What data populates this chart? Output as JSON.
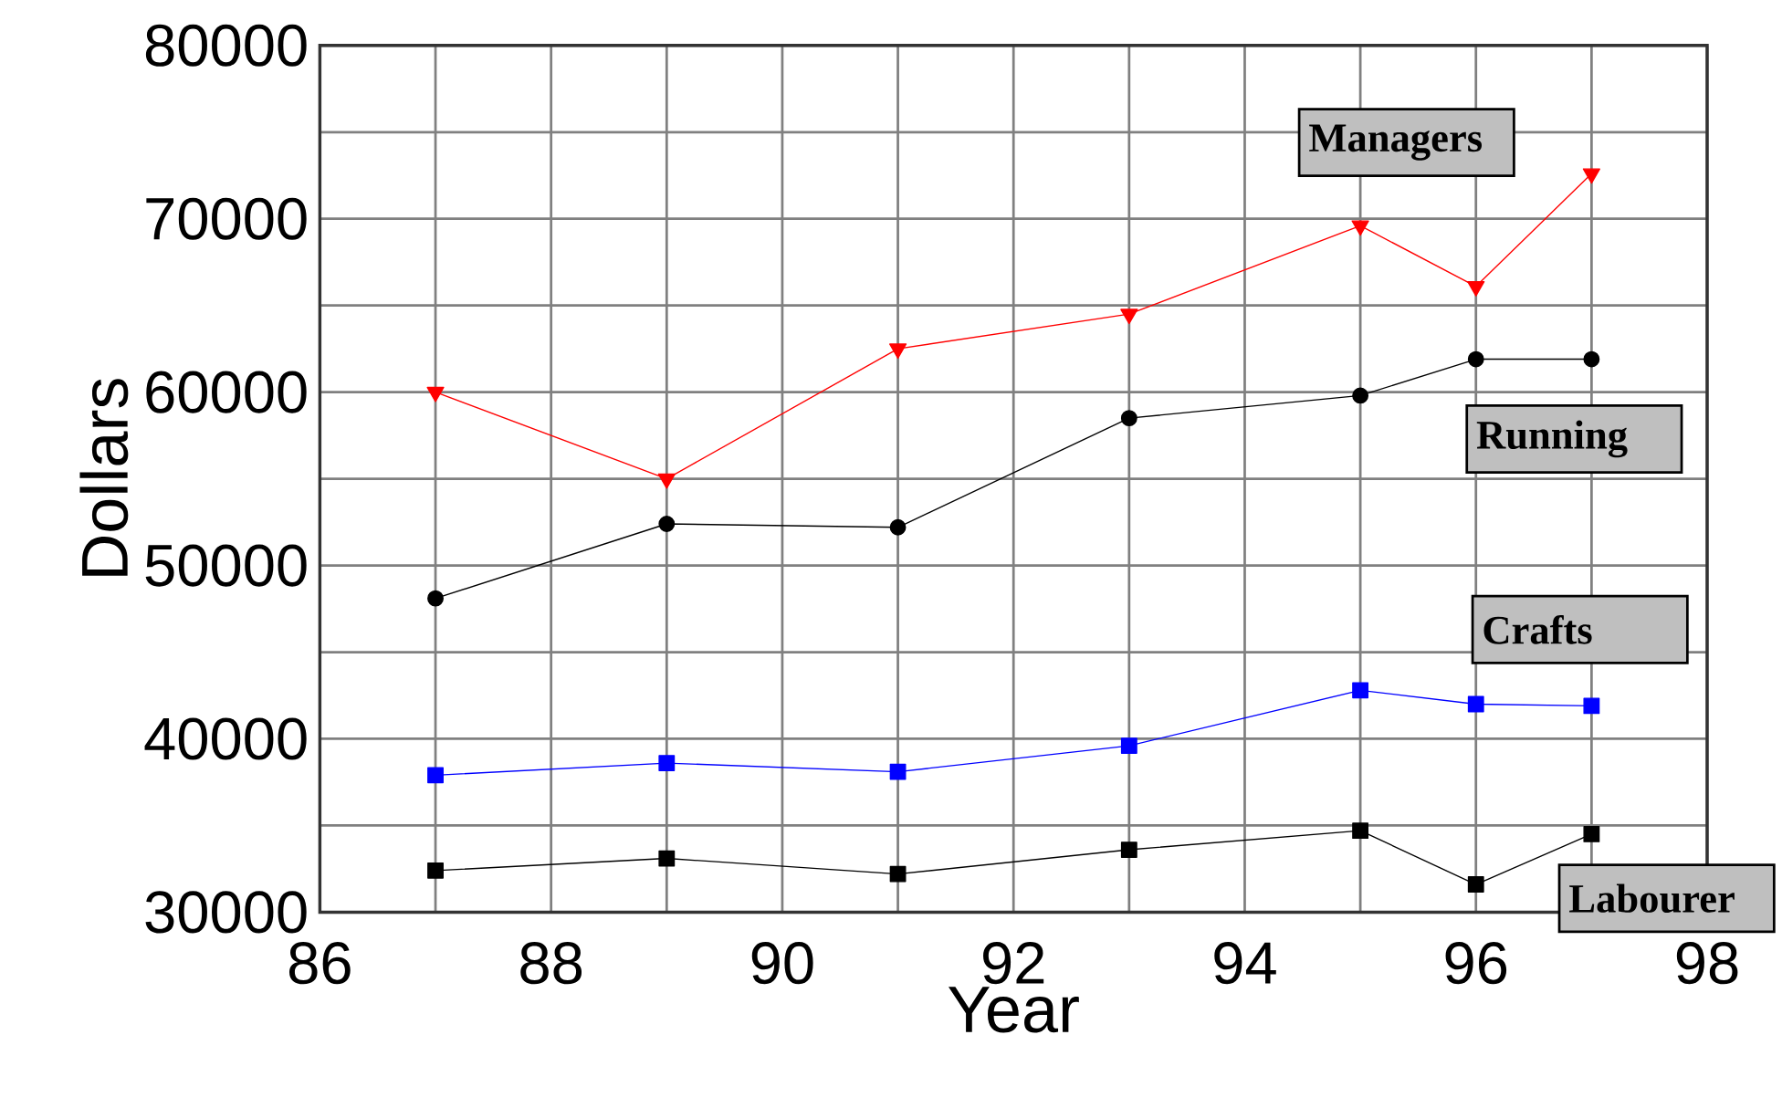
{
  "chart_data": {
    "type": "line",
    "xlabel": "Year",
    "ylabel": "Dollars",
    "x": [
      87,
      89,
      91,
      93,
      95,
      96,
      97
    ],
    "series": [
      {
        "name": "Managers",
        "color": "#ff0000",
        "marker": "triangle",
        "values": [
          60000,
          55000,
          62500,
          64500,
          69600,
          66100,
          72600
        ]
      },
      {
        "name": "Running",
        "color": "#000000",
        "marker": "circle",
        "values": [
          48100,
          52400,
          52200,
          58500,
          59800,
          61900,
          61900
        ]
      },
      {
        "name": "Crafts",
        "color": "#0000ff",
        "marker": "square",
        "values": [
          37900,
          38600,
          38100,
          39600,
          42800,
          42000,
          41900
        ]
      },
      {
        "name": "Labourer",
        "color": "#000000",
        "marker": "square",
        "values": [
          32400,
          33100,
          32200,
          33600,
          34700,
          31600,
          34500
        ]
      }
    ],
    "xlim": [
      86,
      98
    ],
    "xticks": [
      86,
      {
        "value": 87,
        "label": null
      },
      88,
      {
        "value": 89,
        "label": null
      },
      90,
      {
        "value": 91,
        "label": null
      },
      92,
      {
        "value": 93,
        "label": null
      },
      94,
      {
        "value": 95,
        "label": null
      },
      96,
      {
        "value": 97,
        "label": null
      },
      98
    ],
    "ylim": [
      30000,
      80000
    ],
    "yticks": [
      30000,
      {
        "value": 35000,
        "label": null
      },
      40000,
      {
        "value": 45000,
        "label": null
      },
      50000,
      {
        "value": 55000,
        "label": null
      },
      60000,
      {
        "value": 65000,
        "label": null
      },
      70000,
      {
        "value": 75000,
        "label": null
      },
      80000
    ],
    "grid": true
  }
}
